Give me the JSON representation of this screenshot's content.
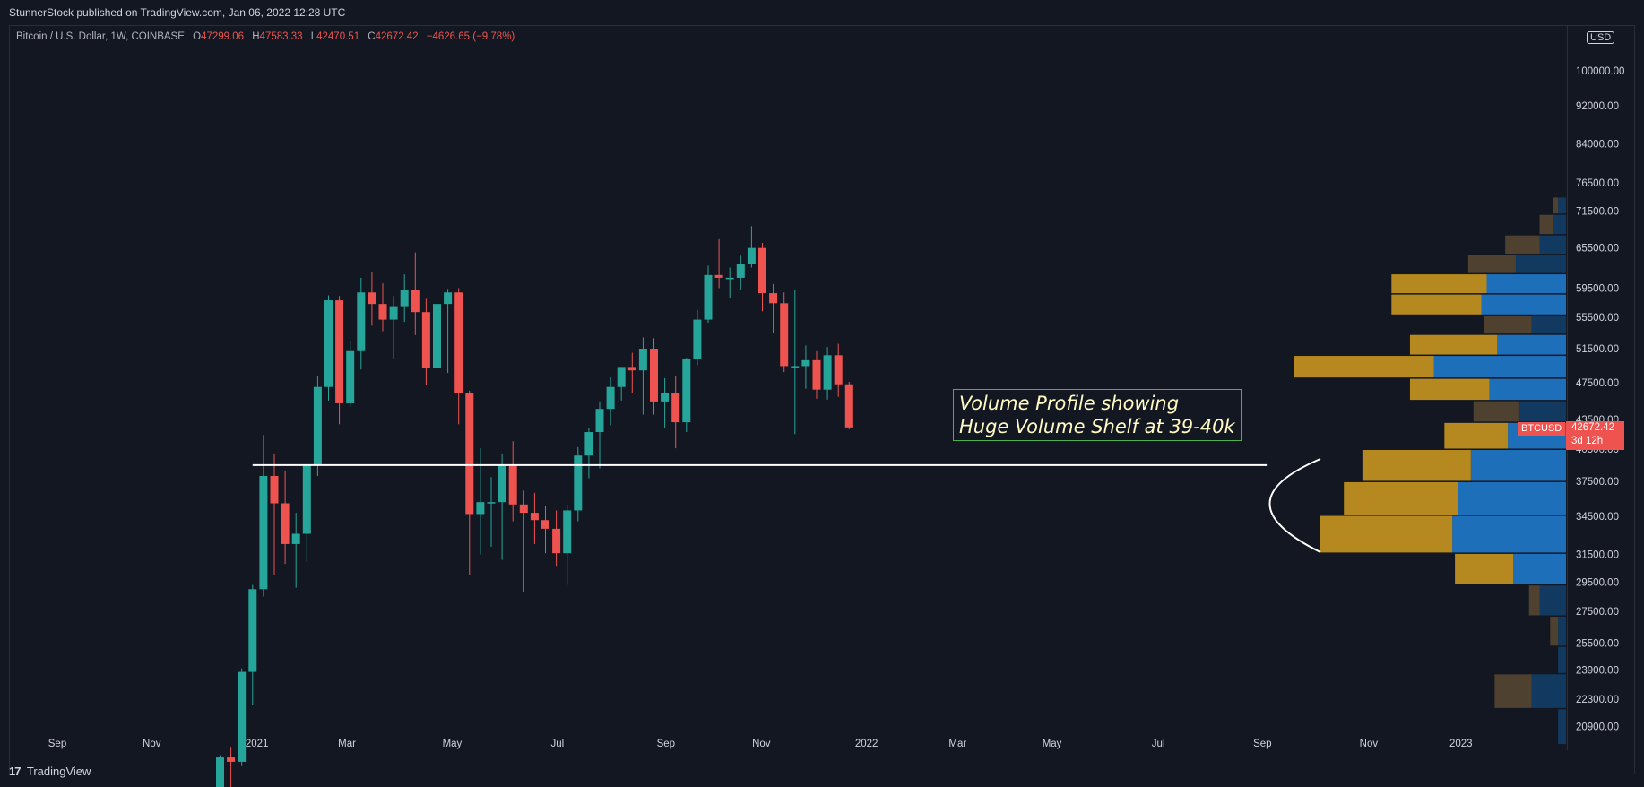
{
  "header": {
    "publisher": "StunnerStock published on TradingView.com, Jan 06, 2022 12:28 UTC"
  },
  "legend": {
    "symbol": "Bitcoin / U.S. Dollar, 1W, COINBASE",
    "o_label": "O",
    "o": "47299.06",
    "h_label": "H",
    "h": "47583.33",
    "l_label": "L",
    "l": "42470.51",
    "c_label": "C",
    "c": "42672.42",
    "change": "−4626.65 (−9.78%)"
  },
  "annotation": {
    "line1": "Volume Profile showing",
    "line2": "Huge Volume Shelf at 39-40k"
  },
  "price_axis": {
    "currency": "USD",
    "symbol_tag": "BTCUSD",
    "last_price": "42672.42",
    "countdown": "3d 12h"
  },
  "footer": {
    "brand": "TradingView"
  },
  "colors": {
    "up": "#26a69a",
    "down": "#ef5350",
    "bg": "#131722",
    "vp_up": "#1e6fba",
    "vp_down": "#b5891f"
  },
  "chart_data": {
    "type": "candlestick",
    "interval": "1W",
    "y_scale": "log",
    "y_ticks": [
      20900,
      22300,
      23900,
      25500,
      27500,
      29500,
      31500,
      34500,
      37500,
      40500,
      43500,
      47500,
      51500,
      55500,
      59500,
      65500,
      71500,
      76500,
      84000,
      92000,
      100000
    ],
    "x_ticks": [
      {
        "label": "Sep",
        "x": 0
      },
      {
        "label": "Nov",
        "x": 8.7
      },
      {
        "label": "2021",
        "x": 18.4
      },
      {
        "label": "Mar",
        "x": 26.7
      },
      {
        "label": "May",
        "x": 36.4
      },
      {
        "label": "Jul",
        "x": 46.1
      },
      {
        "label": "Sep",
        "x": 56.1
      },
      {
        "label": "Nov",
        "x": 64.9
      },
      {
        "label": "2022",
        "x": 74.6
      },
      {
        "label": "Mar",
        "x": 83.0
      },
      {
        "label": "May",
        "x": 91.7
      },
      {
        "label": "Jul",
        "x": 101.5
      },
      {
        "label": "Sep",
        "x": 111.1
      },
      {
        "label": "Nov",
        "x": 120.9
      },
      {
        "label": "2023",
        "x": 129.4
      }
    ],
    "candles": [
      [
        15.0,
        18000,
        19500,
        17600,
        19400
      ],
      [
        16.0,
        19400,
        19900,
        18000,
        19200
      ],
      [
        17.0,
        19200,
        24000,
        19000,
        23800
      ],
      [
        18.0,
        23800,
        29300,
        22000,
        29000
      ],
      [
        19.0,
        29000,
        41900,
        28500,
        38000
      ],
      [
        20.0,
        38000,
        40100,
        30000,
        35600
      ],
      [
        21.0,
        35600,
        38500,
        30800,
        32300
      ],
      [
        22.0,
        32300,
        34800,
        29100,
        33100
      ],
      [
        23.0,
        33100,
        39000,
        31000,
        39000
      ],
      [
        24.0,
        39000,
        48200,
        38000,
        47000
      ],
      [
        25.0,
        47000,
        58500,
        45500,
        57800
      ],
      [
        26.0,
        57800,
        58400,
        43000,
        45200
      ],
      [
        27.0,
        45200,
        52500,
        44800,
        51200
      ],
      [
        28.0,
        51200,
        61000,
        49000,
        58900
      ],
      [
        29.0,
        58900,
        61800,
        54400,
        57300
      ],
      [
        30.0,
        57300,
        60200,
        53700,
        55200
      ],
      [
        31.0,
        55200,
        58400,
        50300,
        57000
      ],
      [
        32.0,
        57000,
        61500,
        54900,
        59200
      ],
      [
        33.0,
        59200,
        64800,
        53200,
        56200
      ],
      [
        34.0,
        56200,
        58000,
        47200,
        49200
      ],
      [
        35.0,
        49200,
        58200,
        46900,
        57300
      ],
      [
        36.0,
        57300,
        59400,
        48600,
        58900
      ],
      [
        37.0,
        58900,
        59500,
        43000,
        46300
      ],
      [
        38.0,
        46300,
        46600,
        30000,
        34700
      ],
      [
        39.0,
        34700,
        40600,
        31500,
        35700
      ],
      [
        40.0,
        35700,
        37900,
        32100,
        35700
      ],
      [
        41.0,
        35700,
        40100,
        31100,
        39000
      ],
      [
        42.0,
        39000,
        41300,
        34100,
        35500
      ],
      [
        43.0,
        35500,
        36700,
        28800,
        34800
      ],
      [
        44.0,
        34800,
        36500,
        32300,
        34200
      ],
      [
        45.0,
        34200,
        35400,
        31600,
        33500
      ],
      [
        46.0,
        33500,
        35000,
        30600,
        31600
      ],
      [
        47.0,
        31600,
        35500,
        29300,
        35000
      ],
      [
        48.0,
        35000,
        40700,
        34100,
        39900
      ],
      [
        49.0,
        39900,
        42600,
        37800,
        42200
      ],
      [
        50.0,
        42200,
        45400,
        38700,
        44600
      ],
      [
        51.0,
        44600,
        48100,
        42900,
        47000
      ],
      [
        52.0,
        47000,
        49300,
        45500,
        49300
      ],
      [
        53.0,
        49300,
        51000,
        46300,
        48900
      ],
      [
        54.0,
        48900,
        52900,
        44000,
        51500
      ],
      [
        55.0,
        51500,
        52800,
        44000,
        45400
      ],
      [
        56.0,
        45400,
        48000,
        42600,
        46300
      ],
      [
        57.0,
        46300,
        48300,
        40600,
        43200
      ],
      [
        58.0,
        43200,
        50400,
        42200,
        50300
      ],
      [
        59.0,
        50300,
        56500,
        49500,
        55200
      ],
      [
        60.0,
        55200,
        62800,
        54800,
        61400
      ],
      [
        61.0,
        61400,
        66900,
        59500,
        61000
      ],
      [
        62.0,
        61000,
        62500,
        58100,
        61000
      ],
      [
        63.0,
        61000,
        64300,
        59300,
        63100
      ],
      [
        64.0,
        63100,
        69000,
        62500,
        65500
      ],
      [
        65.0,
        65500,
        66300,
        56300,
        58800
      ],
      [
        66.0,
        58800,
        60100,
        53500,
        57400
      ],
      [
        67.0,
        57400,
        58900,
        48700,
        49400
      ],
      [
        68.0,
        49400,
        59200,
        42000,
        49400
      ],
      [
        69.0,
        49400,
        51900,
        46800,
        50100
      ],
      [
        70.0,
        50100,
        51200,
        45700,
        46700
      ],
      [
        71.0,
        46700,
        51700,
        45600,
        50700
      ],
      [
        72.0,
        50700,
        52100,
        45900,
        47300
      ],
      [
        73.0,
        47299.06,
        47583.33,
        42470.51,
        42672.42
      ]
    ],
    "volume_profile": [
      {
        "price_low": 20000,
        "price_high": 21800,
        "up": 3,
        "down": 0
      },
      {
        "price_low": 21800,
        "price_high": 23700,
        "up": 13,
        "down": 14
      },
      {
        "price_low": 23700,
        "price_high": 25300,
        "up": 3,
        "down": 0
      },
      {
        "price_low": 25300,
        "price_high": 27200,
        "up": 3,
        "down": 3
      },
      {
        "price_low": 27200,
        "price_high": 29300,
        "up": 10,
        "down": 4
      },
      {
        "price_low": 29300,
        "price_high": 31600,
        "up": 20,
        "down": 22
      },
      {
        "price_low": 31600,
        "price_high": 34600,
        "up": 43,
        "down": 50
      },
      {
        "price_low": 34600,
        "price_high": 37500,
        "up": 41,
        "down": 43
      },
      {
        "price_low": 37500,
        "price_high": 40500,
        "up": 36,
        "down": 41
      },
      {
        "price_low": 40500,
        "price_high": 43200,
        "up": 22,
        "down": 24
      },
      {
        "price_low": 43200,
        "price_high": 45500,
        "up": 18,
        "down": 17
      },
      {
        "price_low": 45500,
        "price_high": 48000,
        "up": 29,
        "down": 30
      },
      {
        "price_low": 48000,
        "price_high": 50700,
        "up": 50,
        "down": 53
      },
      {
        "price_low": 50700,
        "price_high": 53300,
        "up": 26,
        "down": 33
      },
      {
        "price_low": 53300,
        "price_high": 55800,
        "up": 13,
        "down": 18
      },
      {
        "price_low": 55800,
        "price_high": 58700,
        "up": 32,
        "down": 34
      },
      {
        "price_low": 58700,
        "price_high": 61600,
        "up": 30,
        "down": 36
      },
      {
        "price_low": 61600,
        "price_high": 64500,
        "up": 19,
        "down": 18
      },
      {
        "price_low": 64500,
        "price_high": 67600,
        "up": 10,
        "down": 13
      },
      {
        "price_low": 67600,
        "price_high": 71000,
        "up": 5,
        "down": 5
      },
      {
        "price_low": 71000,
        "price_high": 74000,
        "up": 3,
        "down": 2
      }
    ],
    "support_line": {
      "price": 39000,
      "from_x": 18.0,
      "to_x": 111.5
    }
  }
}
